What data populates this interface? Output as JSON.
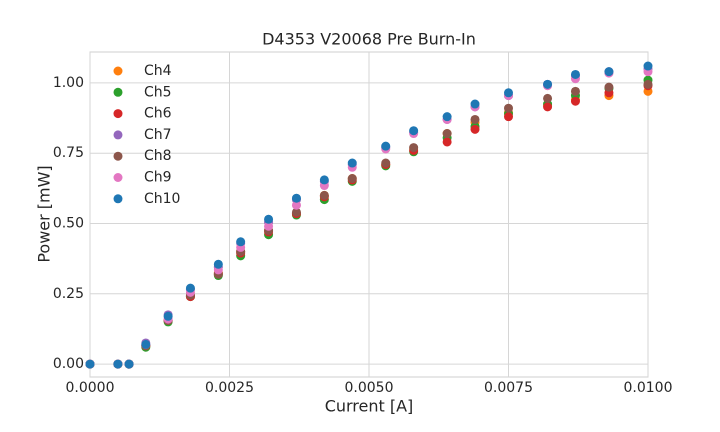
{
  "chart_data": {
    "type": "scatter",
    "title": "D4353 V20068 Pre Burn-In",
    "x_label": "Current [A]",
    "y_label": "Power [mW]",
    "x": [
      0,
      0.0005,
      0.0007,
      0.001,
      0.0014,
      0.0018,
      0.0023,
      0.0027,
      0.0032,
      0.0037,
      0.0042,
      0.0047,
      0.0053,
      0.0058,
      0.0064,
      0.0069,
      0.0075,
      0.0082,
      0.0087,
      0.0093,
      0.01
    ],
    "series": [
      {
        "name": "Ch4",
        "color": "#ff7f0e",
        "values": [
          0,
          0,
          0,
          0.065,
          0.155,
          0.245,
          0.325,
          0.4,
          0.475,
          0.535,
          0.6,
          0.66,
          0.71,
          0.765,
          0.82,
          0.86,
          0.895,
          0.92,
          0.94,
          0.955,
          0.97
        ]
      },
      {
        "name": "Ch5",
        "color": "#2ca02c",
        "values": [
          0,
          0,
          0,
          0.06,
          0.15,
          0.24,
          0.315,
          0.385,
          0.46,
          0.53,
          0.585,
          0.65,
          0.705,
          0.755,
          0.805,
          0.845,
          0.89,
          0.925,
          0.955,
          0.98,
          1.01
        ]
      },
      {
        "name": "Ch6",
        "color": "#d62728",
        "values": [
          0,
          0,
          0,
          0.065,
          0.155,
          0.24,
          0.32,
          0.395,
          0.47,
          0.535,
          0.595,
          0.655,
          0.71,
          0.76,
          0.79,
          0.835,
          0.88,
          0.915,
          0.935,
          0.965,
          0.99
        ]
      },
      {
        "name": "Ch7",
        "color": "#9467bd",
        "values": [
          0,
          0,
          0,
          0.075,
          0.175,
          0.265,
          0.345,
          0.43,
          0.505,
          0.585,
          0.65,
          0.71,
          0.77,
          0.825,
          0.87,
          0.915,
          0.955,
          0.995,
          1.025,
          1.04,
          1.05
        ]
      },
      {
        "name": "Ch8",
        "color": "#8c564b",
        "values": [
          0,
          0,
          0,
          0.065,
          0.155,
          0.245,
          0.32,
          0.4,
          0.475,
          0.54,
          0.6,
          0.66,
          0.715,
          0.77,
          0.82,
          0.87,
          0.91,
          0.945,
          0.97,
          0.985,
          0.995
        ]
      },
      {
        "name": "Ch9",
        "color": "#e377c2",
        "values": [
          0,
          0,
          0,
          0.07,
          0.16,
          0.255,
          0.335,
          0.415,
          0.49,
          0.565,
          0.635,
          0.7,
          0.765,
          0.82,
          0.87,
          0.915,
          0.955,
          0.99,
          1.015,
          1.035,
          1.04
        ]
      },
      {
        "name": "Ch10",
        "color": "#1f77b4",
        "values": [
          0,
          0,
          0,
          0.07,
          0.17,
          0.27,
          0.355,
          0.435,
          0.515,
          0.59,
          0.655,
          0.715,
          0.775,
          0.83,
          0.88,
          0.925,
          0.965,
          0.995,
          1.03,
          1.04,
          1.06
        ]
      }
    ],
    "xlim": [
      0,
      0.01
    ],
    "xticks": [
      {
        "value": 0,
        "label": "0.0000"
      },
      {
        "value": 0.0025,
        "label": "0.0025"
      },
      {
        "value": 0.005,
        "label": "0.0050"
      },
      {
        "value": 0.0075,
        "label": "0.0075"
      },
      {
        "value": 0.01,
        "label": "0.0100"
      }
    ],
    "ylim": [
      -0.046,
      1.11
    ],
    "yticks": [
      {
        "value": 0,
        "label": "0.00"
      },
      {
        "value": 0.25,
        "label": "0.25"
      },
      {
        "value": 0.5,
        "label": "0.50"
      },
      {
        "value": 0.75,
        "label": "0.75"
      },
      {
        "value": 1,
        "label": "1.00"
      }
    ],
    "grid": true,
    "legend": "upper left"
  }
}
